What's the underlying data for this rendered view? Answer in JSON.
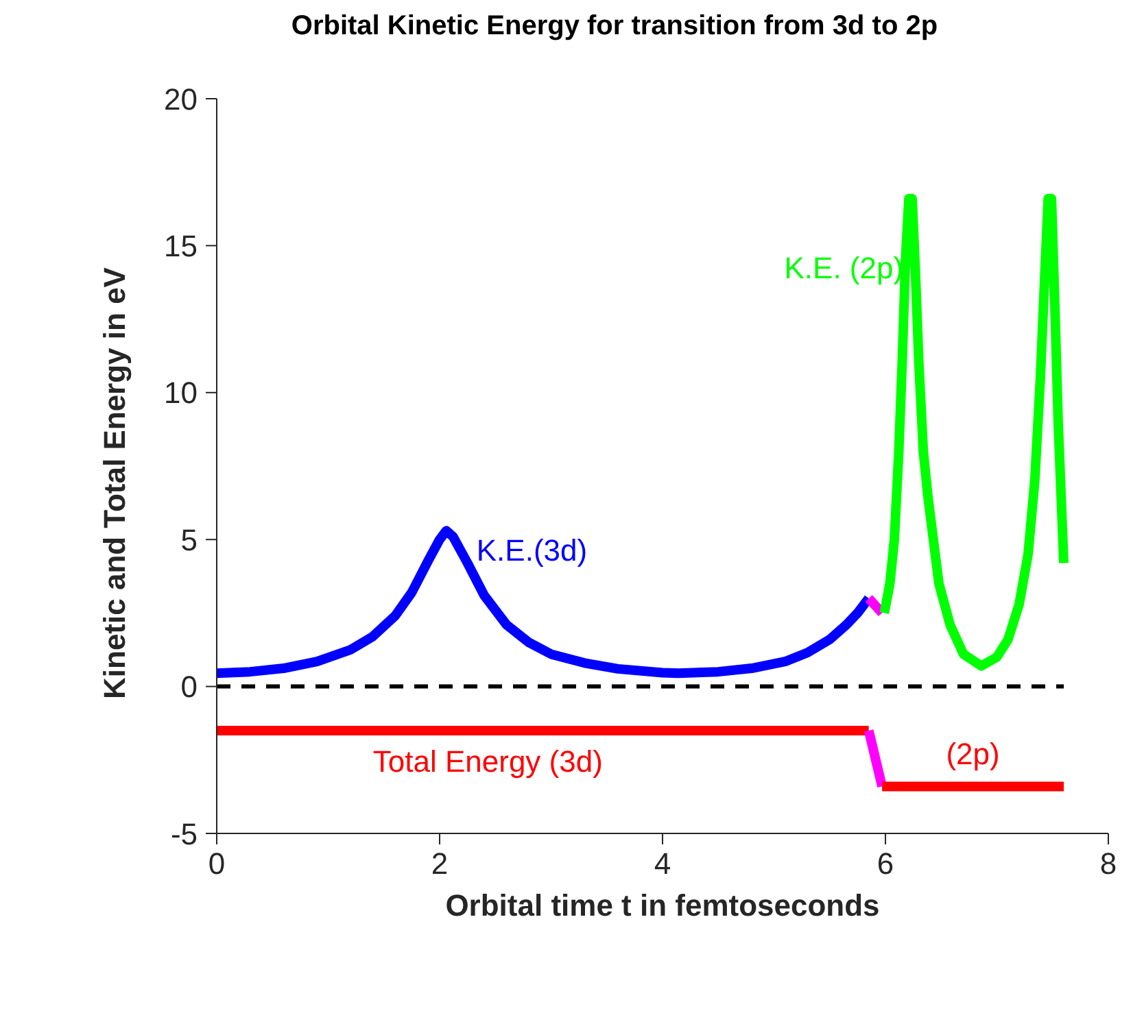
{
  "chart_data": {
    "type": "line",
    "title": "Orbital Kinetic Energy for transition from 3d to 2p",
    "xlabel": "Orbital time t in femtoseconds",
    "ylabel": "Kinetic and Total Energy in eV",
    "xlim": [
      0,
      8
    ],
    "xticks": [
      0,
      2,
      4,
      6,
      8
    ],
    "ylim": [
      -5,
      20
    ],
    "yticks": [
      -5,
      0,
      5,
      10,
      15,
      20
    ],
    "grid": false,
    "legend": false,
    "marker": "none",
    "line_style": "solid",
    "series": [
      {
        "name": "K.E.(3d)",
        "color": "#0000ff",
        "x": [
          0,
          0.3,
          0.6,
          0.9,
          1.2,
          1.4,
          1.6,
          1.75,
          1.9,
          2.0,
          2.06,
          2.12,
          2.25,
          2.4,
          2.6,
          2.8,
          3.0,
          3.3,
          3.6,
          4.0,
          4.14,
          4.5,
          4.8,
          5.1,
          5.3,
          5.5,
          5.65,
          5.75,
          5.85
        ],
        "values": [
          0.45,
          0.5,
          0.62,
          0.85,
          1.25,
          1.7,
          2.4,
          3.2,
          4.3,
          5.0,
          5.3,
          5.1,
          4.2,
          3.1,
          2.1,
          1.5,
          1.1,
          0.8,
          0.6,
          0.47,
          0.45,
          0.5,
          0.62,
          0.85,
          1.15,
          1.6,
          2.1,
          2.5,
          3.0
        ]
      },
      {
        "color": "#ff00ff",
        "x": [
          5.85,
          5.97
        ],
        "values": [
          3.0,
          2.5
        ]
      },
      {
        "name": "K.E. (2p)",
        "color": "#00ff00",
        "x": [
          5.99,
          6.04,
          6.08,
          6.12,
          6.15,
          6.18,
          6.21,
          6.24,
          6.27,
          6.3,
          6.34,
          6.38,
          6.48,
          6.58,
          6.7,
          6.86,
          7.0,
          7.1,
          7.2,
          7.28,
          7.34,
          7.39,
          7.43,
          7.46,
          7.49,
          7.52,
          7.55,
          7.6
        ],
        "values": [
          2.5,
          3.5,
          5,
          8,
          11,
          14.5,
          16.6,
          16.6,
          14,
          11,
          8,
          6.5,
          3.5,
          2.1,
          1.1,
          0.7,
          1.0,
          1.6,
          2.8,
          4.5,
          7,
          10.5,
          14,
          16.6,
          16.6,
          13,
          9,
          4.2
        ]
      },
      {
        "color": "#000000",
        "line_style": "dashed",
        "x": [
          0,
          7.6
        ],
        "values": [
          0,
          0
        ]
      },
      {
        "name": "Total Energy (3d)",
        "color": "#ff0000",
        "x": [
          0,
          5.85
        ],
        "values": [
          -1.5,
          -1.5
        ]
      },
      {
        "color": "#ff00ff",
        "x": [
          5.85,
          5.97
        ],
        "values": [
          -1.5,
          -3.4
        ]
      },
      {
        "name": "(2p)",
        "color": "#ff0000",
        "x": [
          5.97,
          7.6
        ],
        "values": [
          -3.4,
          -3.4
        ]
      }
    ]
  }
}
